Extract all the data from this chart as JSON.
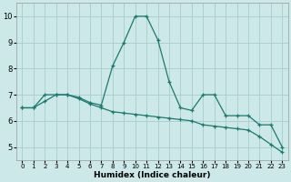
{
  "xlabel": "Humidex (Indice chaleur)",
  "bg_color": "#cce8e8",
  "grid_color": "#aacccc",
  "line_color": "#1a7a6e",
  "xlim": [
    -0.5,
    23.5
  ],
  "ylim": [
    4.5,
    10.5
  ],
  "xticks": [
    0,
    1,
    2,
    3,
    4,
    5,
    6,
    7,
    8,
    9,
    10,
    11,
    12,
    13,
    14,
    15,
    16,
    17,
    18,
    19,
    20,
    21,
    22,
    23
  ],
  "yticks": [
    5,
    6,
    7,
    8,
    9,
    10
  ],
  "line1_x": [
    0,
    1,
    2,
    3,
    4,
    5,
    6,
    7,
    8,
    9,
    10,
    11,
    12,
    13,
    14,
    15,
    16,
    17,
    18,
    19,
    20,
    21,
    22,
    23
  ],
  "line1_y": [
    6.5,
    6.5,
    7.0,
    7.0,
    7.0,
    6.9,
    6.7,
    6.6,
    8.1,
    9.0,
    10.0,
    10.0,
    9.1,
    7.5,
    6.5,
    6.4,
    7.0,
    7.0,
    6.2,
    6.2,
    6.2,
    5.85,
    5.85,
    5.0
  ],
  "line2_x": [
    0,
    1,
    2,
    3,
    4,
    5,
    6,
    7,
    8,
    9,
    10,
    11,
    12,
    13,
    14,
    15,
    16,
    17,
    18,
    19,
    20,
    21,
    22,
    23
  ],
  "line2_y": [
    6.5,
    6.5,
    6.75,
    7.0,
    7.0,
    6.85,
    6.65,
    6.5,
    6.35,
    6.3,
    6.25,
    6.2,
    6.15,
    6.1,
    6.05,
    6.0,
    5.85,
    5.8,
    5.75,
    5.7,
    5.65,
    5.4,
    5.1,
    4.8
  ]
}
